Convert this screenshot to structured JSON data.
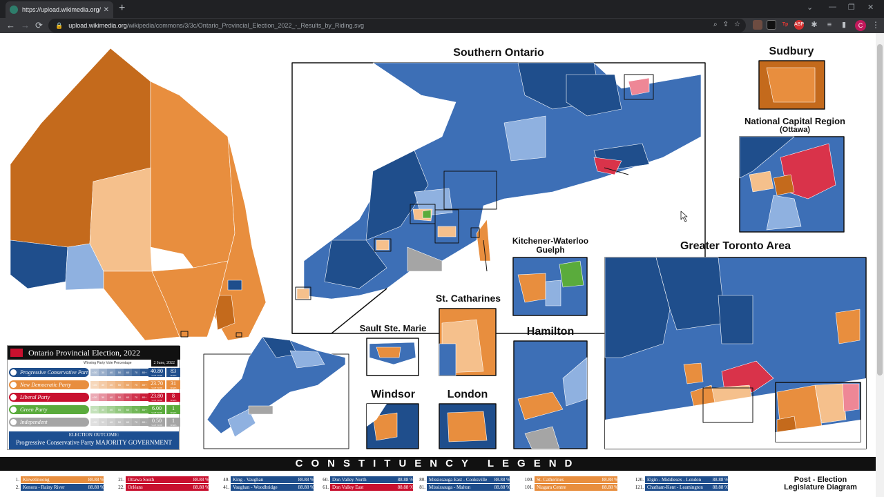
{
  "browser": {
    "tab_title": "https://upload.wikimedia.org/wi",
    "tab_close": "✕",
    "new_tab": "+",
    "url_host": "upload.wikimedia.org",
    "url_path": "/wikipedia/commons/3/3c/Ontario_Provincial_Election_2022_-_Results_by_Riding.svg",
    "nav_back": "←",
    "nav_forward": "→",
    "nav_reload": "⟳",
    "profile_initial": "C",
    "ext_abp": "ABP",
    "ext_tp": "Tp"
  },
  "map": {
    "colors": {
      "pc_dark": "#1f4e8c",
      "pc_mid": "#3d6fb6",
      "pc_light": "#8fb1e0",
      "ndp_dark": "#c46a1c",
      "ndp_mid": "#e88e3e",
      "ndp_light": "#f5c08c",
      "lib": "#d9334a",
      "lib_light": "#ee8796",
      "green": "#5aab3c",
      "ind": "#a5a5a5"
    },
    "insets": {
      "southern": "Southern Ontario",
      "sudbury": "Sudbury",
      "ncr": "National Capital Region",
      "ncr_sub": "(Ottawa)",
      "kw": "Kitchener-Waterloo",
      "kw_sub": "Guelph",
      "gta": "Greater Toronto Area",
      "stc": "St. Catharines",
      "ssm": "Sault Ste. Marie",
      "hamilton": "Hamilton",
      "windsor": "Windsor",
      "london": "London"
    }
  },
  "results": {
    "title": "Ontario Provincial Election, 2022",
    "date": "2 June, 2022",
    "subtitle": "Winning Party Vote Percentage",
    "scale": [
      "<30",
      "30",
      "40",
      "50",
      "60",
      "70",
      "80+"
    ],
    "vote_label": "% OF VOTE",
    "seat_label": "SEATS",
    "parties": [
      {
        "name": "Progressive Conservative Party",
        "vote": "40.80",
        "seats": "83",
        "color": "#1f4e8c"
      },
      {
        "name": "New Democratic Party",
        "vote": "23.70",
        "seats": "31",
        "color": "#e88e3e"
      },
      {
        "name": "Liberal Party",
        "vote": "23.80",
        "seats": "8",
        "color": "#c8102e"
      },
      {
        "name": "Green Party",
        "vote": "6.00",
        "seats": "1",
        "color": "#5aab3c"
      },
      {
        "name": "Independent",
        "vote": "0.50",
        "seats": "1",
        "color": "#a5a5a5"
      }
    ],
    "outcome_label": "ELECTION OUTCOME:",
    "outcome": "Progressive Conservative Party MAJORITY GOVERNMENT"
  },
  "legend": {
    "heading": "CONSTITUENCY LEGEND",
    "entries": [
      {
        "num": "1.",
        "name": "Kiiwetinoong",
        "pct": "88.88 %",
        "color": "#e88e3e"
      },
      {
        "num": "2.",
        "name": "Kenora - Rainy River",
        "pct": "88.88 %",
        "color": "#1f4e8c"
      },
      {
        "num": "21.",
        "name": "Ottawa South",
        "pct": "88.88 %",
        "color": "#c8102e"
      },
      {
        "num": "22.",
        "name": "Orléans",
        "pct": "88.88 %",
        "color": "#c8102e"
      },
      {
        "num": "40.",
        "name": "King - Vaughan",
        "pct": "88.88 %",
        "color": "#1f4e8c"
      },
      {
        "num": "41.",
        "name": "Vaughan - Woodbridge",
        "pct": "88.88 %",
        "color": "#1f4e8c"
      },
      {
        "num": "60.",
        "name": "Don Valley North",
        "pct": "88.88 %",
        "color": "#1f4e8c"
      },
      {
        "num": "61.",
        "name": "Don Valley East",
        "pct": "88.88 %",
        "color": "#c8102e"
      },
      {
        "num": "80.",
        "name": "Mississauga East - Cooksville",
        "pct": "88.88 %",
        "color": "#1f4e8c"
      },
      {
        "num": "81.",
        "name": "Mississauga - Malton",
        "pct": "88.88 %",
        "color": "#1f4e8c"
      },
      {
        "num": "100.",
        "name": "St. Catherines",
        "pct": "88.88 %",
        "color": "#e88e3e"
      },
      {
        "num": "101.",
        "name": "Niagara Centre",
        "pct": "88.88 %",
        "color": "#e88e3e"
      },
      {
        "num": "120.",
        "name": "Elgin - Middlesex - London",
        "pct": "88.88 %",
        "color": "#1f4e8c"
      },
      {
        "num": "121.",
        "name": "Chatham-Kent - Leamington",
        "pct": "88.88 %",
        "color": "#1f4e8c"
      }
    ],
    "post_election": "Post - Election Legislature Diagram"
  }
}
